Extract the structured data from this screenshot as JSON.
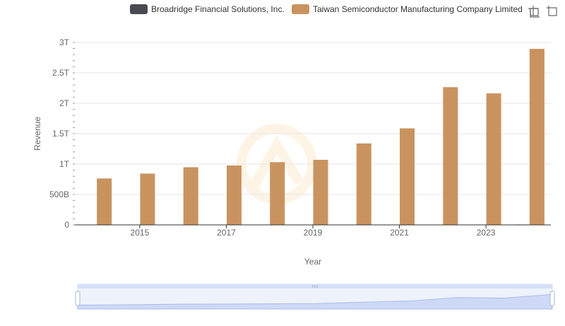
{
  "legend": [
    {
      "name": "Broadridge Financial Solutions, Inc.",
      "color": "#4a4a55"
    },
    {
      "name": "Taiwan Semiconductor Manufacturing Company Limited",
      "color": "#c99360"
    }
  ],
  "toolbox": {
    "icons": [
      "zoom-icon",
      "restore-icon"
    ]
  },
  "chart_data": {
    "type": "bar",
    "xlabel": "Year",
    "ylabel": "Revenue",
    "categories": [
      "2014",
      "2015",
      "2016",
      "2017",
      "2018",
      "2019",
      "2020",
      "2021",
      "2022",
      "2023",
      "2024"
    ],
    "x_tick_labels": [
      "2015",
      "2017",
      "2019",
      "2021",
      "2023"
    ],
    "y_tick_labels": [
      "0",
      "500B",
      "1T",
      "1.5T",
      "2T",
      "2.5T",
      "3T"
    ],
    "ylim": [
      0,
      3000000000000
    ],
    "grid": true,
    "legend_position": "top",
    "series": [
      {
        "name": "Broadridge Financial Solutions, Inc.",
        "color": "#4a4a55",
        "values": [
          2560000000,
          2690000000,
          2900000000,
          4140000000,
          4330000000,
          4360000000,
          4530000000,
          4990000000,
          5710000000,
          6060000000,
          6510000000
        ]
      },
      {
        "name": "Taiwan Semiconductor Manufacturing Company Limited",
        "color": "#c99360",
        "values": [
          763000000000,
          843000000000,
          948000000000,
          977000000000,
          1031000000000,
          1070000000000,
          1339000000000,
          1587000000000,
          2264000000000,
          2162000000000,
          2894000000000
        ]
      }
    ]
  }
}
